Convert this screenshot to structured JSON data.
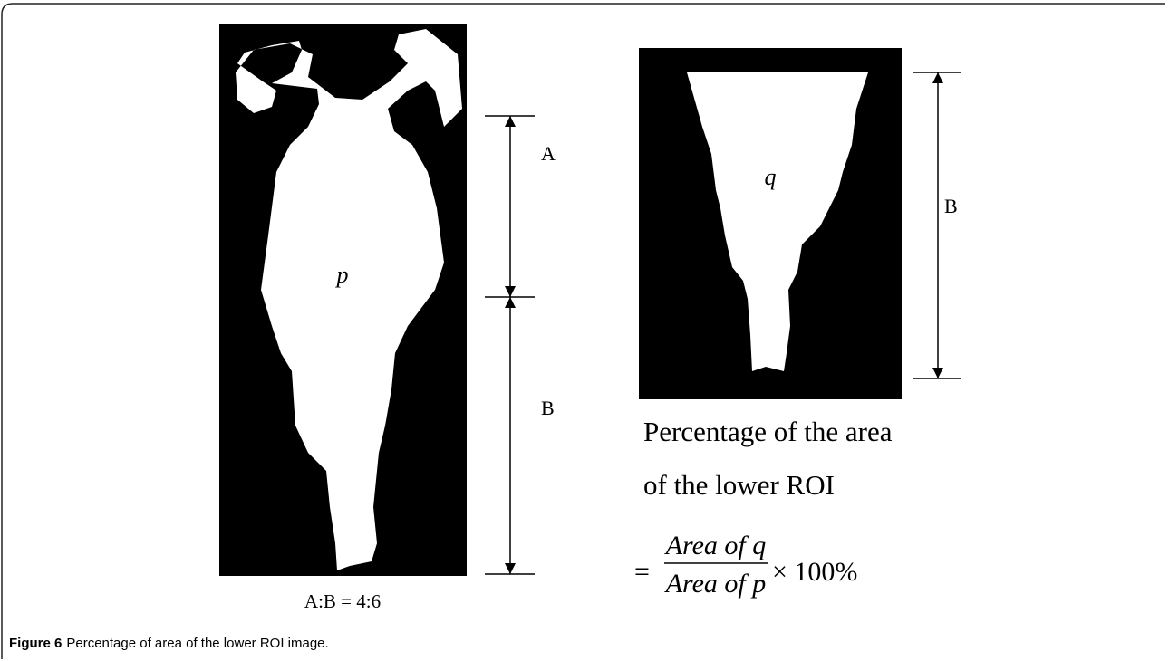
{
  "figure": {
    "left_panel": {
      "region_label": "p",
      "dimension_labels": [
        "A",
        "B"
      ],
      "ratio": "A:B = 4:6"
    },
    "right_panel": {
      "region_label": "q",
      "dimension_label": "B"
    },
    "formula": {
      "lines": [
        "Percentage of the area",
        "of the lower ROI"
      ],
      "equals": "=",
      "numerator": "Area of q",
      "denominator": "Area of p",
      "factor": "× 100%"
    },
    "caption": {
      "label": "Figure 6",
      "text": "Percentage of area of the lower ROI image."
    }
  }
}
